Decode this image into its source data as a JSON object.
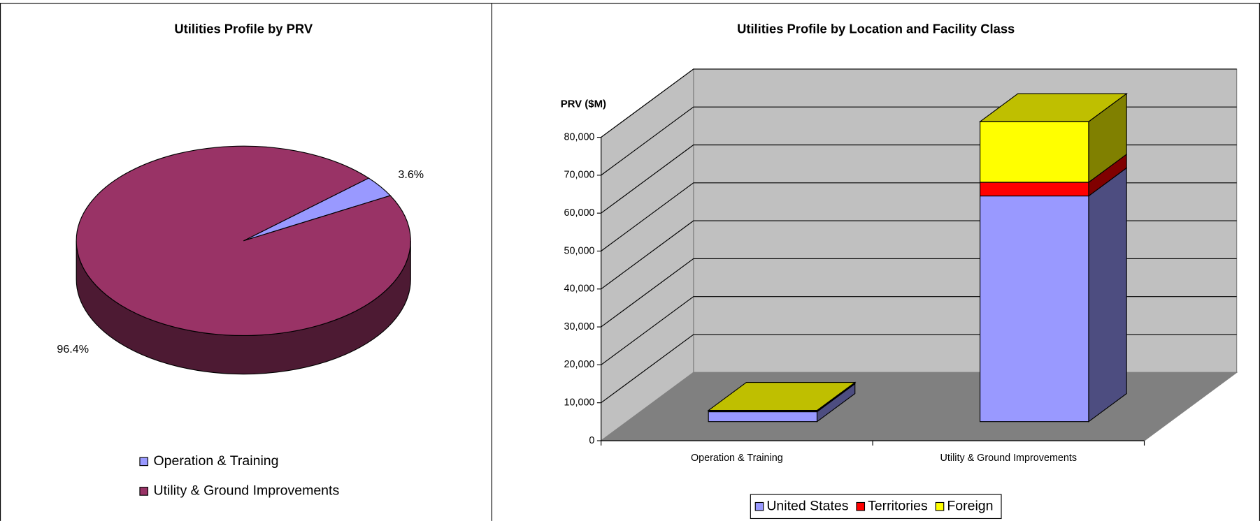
{
  "chart_data": [
    {
      "type": "pie",
      "title": "Utilities Profile by PRV",
      "categories": [
        "Operation & Training",
        "Utility & Ground Improvements"
      ],
      "values": [
        3.6,
        96.4
      ],
      "value_labels": [
        "3.6%",
        "96.4%"
      ],
      "colors": [
        "#9999ff",
        "#993366"
      ],
      "three_d": true,
      "legend": "bottom"
    },
    {
      "type": "bar",
      "stacked": true,
      "three_d": true,
      "title": "Utilities Profile by Location and Facility Class",
      "y_label": "PRV ($M)",
      "categories": [
        "Operation & Training",
        "Utility & Ground Improvements"
      ],
      "series": [
        {
          "name": "United States",
          "color": "#9999ff",
          "values": [
            2600,
            59500
          ]
        },
        {
          "name": "Territories",
          "color": "#ff0000",
          "values": [
            200,
            3600
          ]
        },
        {
          "name": "Foreign",
          "color": "#ffff00",
          "values": [
            150,
            16000
          ]
        }
      ],
      "ylim": [
        0,
        80000
      ],
      "yticks": [
        0,
        {
          "value": 10000,
          "label": "10,000"
        },
        {
          "value": 20000,
          "label": "20,000"
        },
        {
          "value": 30000,
          "label": "30,000"
        },
        {
          "value": 40000,
          "label": "40,000"
        },
        {
          "value": 50000,
          "label": "50,000"
        },
        {
          "value": 60000,
          "label": "60,000"
        },
        {
          "value": 70000,
          "label": "70,000"
        },
        {
          "value": 80000,
          "label": "80,000"
        }
      ],
      "grid": true,
      "legend": "bottom"
    }
  ]
}
